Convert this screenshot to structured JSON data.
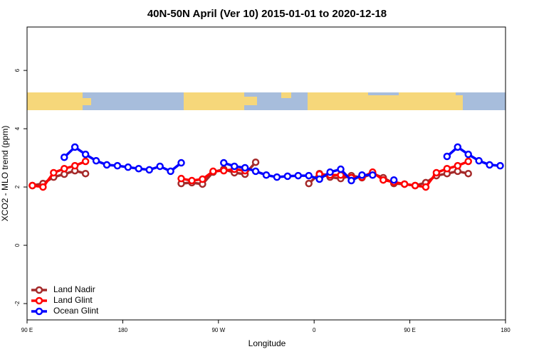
{
  "chart_data": {
    "type": "line",
    "title": "40N-50N April (Ver 10)   2015-01-01 to 2020-12-18",
    "x_label": "Longitude",
    "y_label": "XCO2 - MLO trend (ppm)",
    "x": [
      95,
      105,
      115,
      125,
      135,
      145,
      155,
      165,
      175,
      185,
      195,
      205,
      215,
      225,
      235,
      245,
      255,
      265,
      275,
      285,
      295,
      305,
      315,
      325,
      335,
      345,
      355,
      365,
      375,
      385,
      395,
      405,
      415,
      425,
      435,
      445,
      455,
      465,
      475,
      485,
      495,
      505,
      515,
      525,
      535
    ],
    "xlim": [
      90,
      540
    ],
    "xticks": [
      {
        "value": 90,
        "label": "90 E"
      },
      180,
      {
        "value": 270,
        "label": "90 W"
      },
      {
        "value": 360,
        "label": "0"
      },
      {
        "value": 450,
        "label": "90 E"
      },
      {
        "value": 540,
        "label": "180"
      }
    ],
    "ylim": [
      -2.56,
      7.49
    ],
    "yticks": [
      -2,
      0,
      2,
      4,
      6
    ],
    "legend": "bottom-left",
    "series": [
      {
        "name": "Land Nadir",
        "color": "#a52a2a",
        "values": [
          2.05,
          2.12,
          2.34,
          2.44,
          2.56,
          2.46,
          null,
          null,
          null,
          null,
          null,
          null,
          null,
          null,
          2.12,
          2.15,
          2.1,
          2.51,
          2.61,
          2.49,
          2.44,
          2.85,
          null,
          null,
          null,
          null,
          2.12,
          2.46,
          2.34,
          2.29,
          2.39,
          2.32,
          2.46,
          2.32,
          2.12,
          2.1,
          2.05,
          2.15,
          2.39,
          2.46,
          2.54,
          2.46,
          null,
          null,
          null
        ]
      },
      {
        "name": "Land Glint",
        "color": "#ff0000",
        "values": [
          2.05,
          2.0,
          2.49,
          2.63,
          2.73,
          2.88,
          null,
          null,
          null,
          null,
          null,
          null,
          null,
          null,
          2.29,
          2.22,
          2.27,
          2.54,
          2.56,
          2.61,
          2.56,
          null,
          null,
          null,
          null,
          null,
          null,
          2.44,
          2.41,
          2.41,
          2.32,
          2.34,
          2.51,
          2.24,
          2.17,
          2.1,
          2.05,
          2.0,
          2.49,
          2.63,
          2.73,
          2.88,
          null,
          null,
          null
        ]
      },
      {
        "name": "Ocean Glint",
        "color": "#0000ff",
        "values": [
          null,
          null,
          null,
          3.02,
          3.37,
          3.12,
          2.9,
          2.76,
          2.73,
          2.68,
          2.63,
          2.59,
          2.71,
          2.54,
          2.83,
          null,
          null,
          null,
          2.83,
          2.71,
          2.66,
          2.54,
          2.41,
          2.34,
          2.37,
          2.39,
          2.39,
          2.27,
          2.51,
          2.61,
          2.22,
          2.41,
          2.41,
          null,
          2.24,
          null,
          null,
          null,
          null,
          3.05,
          3.37,
          3.12,
          2.9,
          2.76,
          2.73
        ]
      }
    ]
  }
}
